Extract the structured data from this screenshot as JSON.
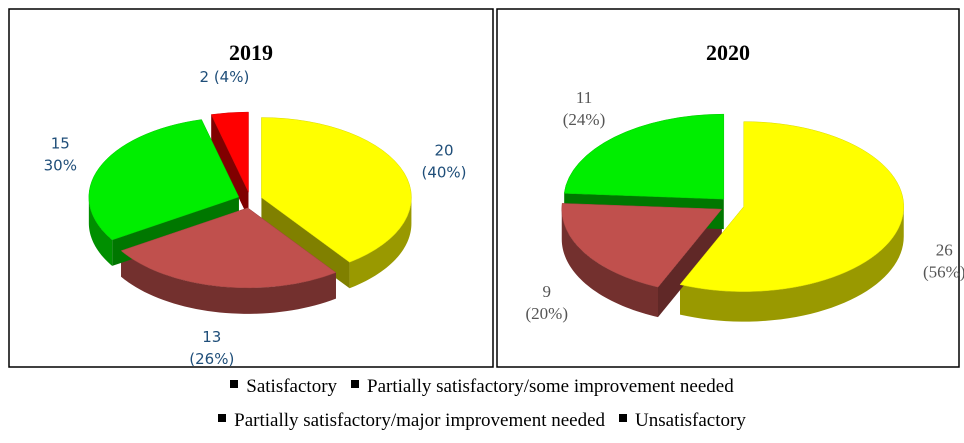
{
  "legend": [
    "Satisfactory",
    "Partially satisfactory/some improvement needed",
    "Partially satisfactory/major improvement needed",
    "Unsatisfactory"
  ],
  "chart_data": [
    {
      "type": "pie",
      "title": "2019",
      "values": [
        20,
        13,
        15,
        2
      ],
      "value_labels": [
        [
          "20",
          "(40%)"
        ],
        [
          "13",
          "(26%)"
        ],
        [
          "15",
          "30%"
        ],
        [
          "2 (4%)"
        ]
      ],
      "colors": [
        "#ffff00",
        "#c0504d",
        "#00ee00",
        "#ff0000"
      ]
    },
    {
      "type": "pie",
      "title": "2020",
      "values": [
        26,
        9,
        11,
        0
      ],
      "value_labels": [
        [
          "26",
          "(56%)"
        ],
        [
          "9",
          "(20%)"
        ],
        [
          "11",
          "(24%)"
        ],
        null
      ],
      "colors": [
        "#ffff00",
        "#c0504d",
        "#00ee00",
        "#ff0000"
      ]
    }
  ]
}
